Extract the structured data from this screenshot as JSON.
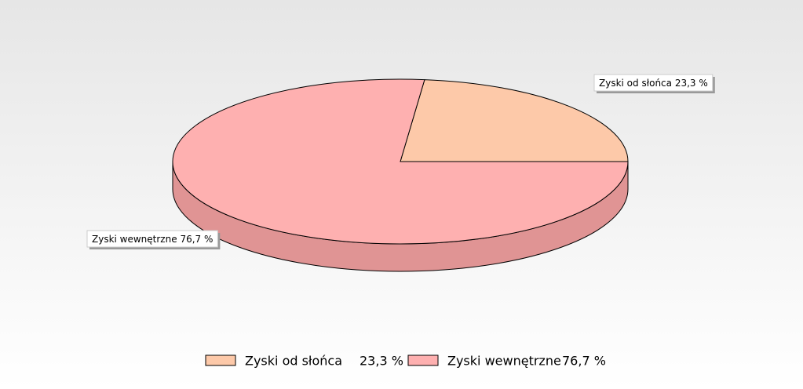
{
  "chart_data": {
    "type": "pie",
    "categories": [
      "Zyski od słońca",
      "Zyski wewnętrzne"
    ],
    "values": [
      23.3,
      76.7
    ],
    "value_labels": [
      "23,3 %",
      "76,7 %"
    ],
    "colors": [
      "#fdc9a9",
      "#feb0b0"
    ]
  }
}
